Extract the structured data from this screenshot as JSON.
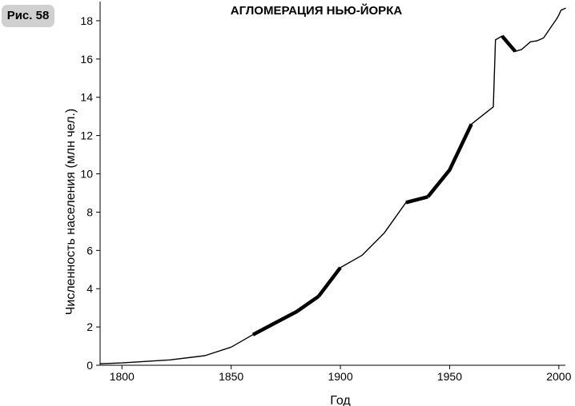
{
  "figure_label": "Рис. 58",
  "chart_data": {
    "type": "line",
    "title": "АГЛОМЕРАЦИЯ НЬЮ-ЙОРКА",
    "xlabel": "Год",
    "ylabel": "Численность населения (млн чел.)",
    "xlim": [
      1790,
      2003
    ],
    "ylim": [
      0,
      19
    ],
    "x_ticks": [
      1800,
      1850,
      1900,
      1950,
      2000
    ],
    "y_ticks": [
      0,
      2,
      4,
      6,
      8,
      10,
      12,
      14,
      16,
      18
    ],
    "grid": false,
    "series": [
      {
        "x": [
          1790,
          1800,
          1822,
          1838,
          1850,
          1860,
          1870,
          1880,
          1890,
          1900,
          1910,
          1920,
          1930,
          1940,
          1950,
          1960,
          1970,
          1971,
          1974,
          1980,
          1983,
          1987,
          1990,
          1993,
          1996,
          1999,
          2000,
          2001,
          2003
        ],
        "values": [
          0.08,
          0.12,
          0.28,
          0.5,
          0.95,
          1.6,
          2.2,
          2.8,
          3.6,
          5.1,
          5.75,
          6.9,
          8.5,
          8.8,
          10.2,
          12.6,
          13.5,
          17.0,
          17.2,
          16.4,
          16.5,
          16.9,
          16.95,
          17.1,
          17.6,
          18.1,
          18.3,
          18.55,
          18.65
        ]
      }
    ],
    "highlighted_ranges": [
      [
        1860,
        1890
      ],
      [
        1890,
        1900
      ],
      [
        1930,
        1940
      ],
      [
        1940,
        1960
      ],
      [
        1973,
        1980
      ]
    ]
  }
}
